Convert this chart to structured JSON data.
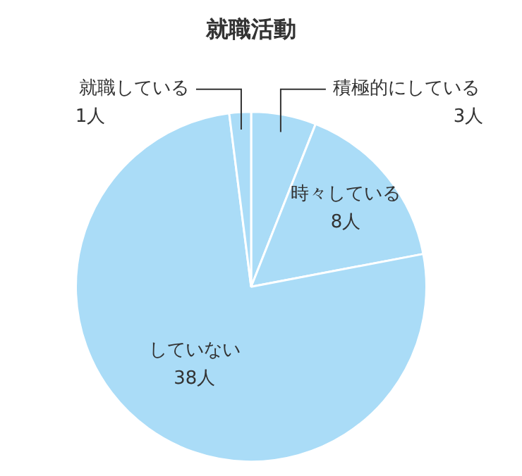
{
  "chart_data": {
    "type": "pie",
    "title": "就職活動",
    "categories": [
      "積極的にしている",
      "時々している",
      "していない",
      "就職している"
    ],
    "values": [
      3,
      8,
      38,
      1
    ],
    "value_labels": [
      "3人",
      "8人",
      "38人",
      "1人"
    ],
    "colors": [
      "#aadcf7",
      "#aadcf7",
      "#aadcf7",
      "#aadcf7"
    ],
    "legend": false
  }
}
